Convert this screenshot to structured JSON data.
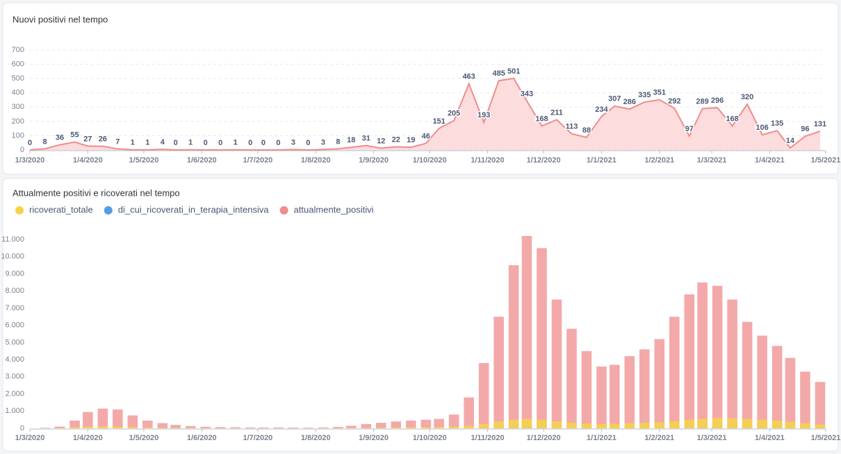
{
  "chart_data": [
    {
      "type": "area",
      "title": "Nuovi positivi nel tempo",
      "color": "#ef8c8c",
      "fill": "#fcdcdc",
      "grid": true,
      "x": [
        "1/3/2020",
        "9/3/2020",
        "17/3/2020",
        "25/3/2020",
        "1/4/2020",
        "9/4/2020",
        "17/4/2020",
        "25/4/2020",
        "3/5/2020",
        "11/5/2020",
        "18/5/2020",
        "26/5/2020",
        "3/6/2020",
        "11/6/2020",
        "19/6/2020",
        "27/6/2020",
        "4/7/2020",
        "12/7/2020",
        "20/7/2020",
        "28/7/2020",
        "5/8/2020",
        "13/8/2020",
        "20/8/2020",
        "28/8/2020",
        "5/9/2020",
        "13/9/2020",
        "21/9/2020",
        "29/9/2020",
        "6/10/2020",
        "14/10/2020",
        "22/10/2020",
        "30/10/2020",
        "7/11/2020",
        "15/11/2020",
        "22/11/2020",
        "30/11/2020",
        "8/12/2020",
        "16/12/2020",
        "24/12/2020",
        "1/1/2021",
        "8/1/2021",
        "16/1/2021",
        "24/1/2021",
        "1/2/2021",
        "9/2/2021",
        "17/2/2021",
        "24/2/2021",
        "4/3/2021",
        "12/3/2021",
        "20/3/2021",
        "28/3/2021",
        "5/4/2021",
        "12/4/2021",
        "20/4/2021",
        "28/4/2021"
      ],
      "values": [
        0,
        8,
        36,
        55,
        27,
        26,
        7,
        1,
        1,
        4,
        0,
        1,
        0,
        0,
        1,
        0,
        0,
        0,
        3,
        0,
        3,
        8,
        18,
        31,
        12,
        22,
        19,
        46,
        151,
        205,
        463,
        193,
        485,
        501,
        343,
        168,
        211,
        113,
        88,
        234,
        307,
        286,
        335,
        351,
        292,
        97,
        289,
        296,
        168,
        320,
        106,
        135,
        14,
        96,
        131
      ],
      "xlim": [
        "1/3/2020",
        "1/5/2021"
      ],
      "xticks": [
        "1/3/2020",
        "1/4/2020",
        "1/5/2020",
        "1/6/2020",
        "1/7/2020",
        "1/8/2020",
        "1/9/2020",
        "1/10/2020",
        "1/11/2020",
        "1/12/2020",
        "1/1/2021",
        "1/2/2021",
        "1/3/2021",
        "1/4/2021",
        "1/5/2021"
      ],
      "ylim": [
        0,
        780
      ],
      "yticks": [
        0,
        100,
        200,
        300,
        400,
        500,
        600,
        700
      ]
    },
    {
      "type": "bar",
      "title": "Attualmente positivi e ricoverati nel tempo",
      "grid": false,
      "legend": "top-left",
      "x": [
        "1/3/2020",
        "9/3/2020",
        "17/3/2020",
        "25/3/2020",
        "1/4/2020",
        "9/4/2020",
        "17/4/2020",
        "25/4/2020",
        "3/5/2020",
        "11/5/2020",
        "18/5/2020",
        "26/5/2020",
        "3/6/2020",
        "11/6/2020",
        "19/6/2020",
        "27/6/2020",
        "4/7/2020",
        "12/7/2020",
        "20/7/2020",
        "28/7/2020",
        "5/8/2020",
        "13/8/2020",
        "20/8/2020",
        "28/8/2020",
        "5/9/2020",
        "13/9/2020",
        "21/9/2020",
        "29/9/2020",
        "6/10/2020",
        "14/10/2020",
        "22/10/2020",
        "30/10/2020",
        "7/11/2020",
        "15/11/2020",
        "22/11/2020",
        "30/11/2020",
        "8/12/2020",
        "16/12/2020",
        "24/12/2020",
        "1/1/2021",
        "8/1/2021",
        "16/1/2021",
        "24/1/2021",
        "1/2/2021",
        "9/2/2021",
        "17/2/2021",
        "24/2/2021",
        "4/3/2021",
        "12/3/2021",
        "20/3/2021",
        "28/3/2021",
        "5/4/2021",
        "12/4/2021",
        "20/4/2021",
        "28/4/2021"
      ],
      "series": [
        {
          "name": "ricoverati_totale",
          "color": "#f5d24b",
          "values": [
            0,
            5,
            20,
            60,
            100,
            110,
            100,
            80,
            50,
            30,
            20,
            15,
            10,
            8,
            5,
            5,
            5,
            5,
            5,
            5,
            5,
            10,
            20,
            30,
            40,
            50,
            60,
            70,
            80,
            100,
            150,
            250,
            400,
            500,
            550,
            500,
            400,
            330,
            280,
            260,
            270,
            300,
            320,
            350,
            420,
            500,
            560,
            600,
            580,
            550,
            500,
            450,
            380,
            300,
            220
          ]
        },
        {
          "name": "di_cui_ricoverati_in_terapia_intensiva",
          "color": "#509ee3",
          "values": [
            0,
            1,
            5,
            10,
            15,
            15,
            12,
            10,
            6,
            4,
            3,
            2,
            1,
            1,
            1,
            1,
            1,
            1,
            1,
            1,
            1,
            1,
            2,
            3,
            4,
            5,
            6,
            7,
            8,
            10,
            20,
            35,
            55,
            65,
            65,
            55,
            45,
            35,
            30,
            28,
            28,
            30,
            32,
            35,
            40,
            48,
            55,
            60,
            60,
            58,
            55,
            50,
            42,
            35,
            28
          ]
        },
        {
          "name": "attualmente_positivi",
          "color": "#ef8c8c",
          "values": [
            0,
            30,
            100,
            450,
            950,
            1150,
            1100,
            750,
            450,
            300,
            200,
            130,
            90,
            70,
            60,
            50,
            50,
            50,
            45,
            40,
            50,
            80,
            150,
            250,
            320,
            400,
            450,
            500,
            550,
            800,
            1800,
            3800,
            6500,
            9500,
            11200,
            10500,
            7500,
            5800,
            4500,
            3600,
            3700,
            4200,
            4600,
            5200,
            6500,
            7800,
            8500,
            8300,
            7500,
            6200,
            5400,
            4800,
            4100,
            3300,
            2700
          ]
        }
      ],
      "xlim": [
        "1/3/2020",
        "1/5/2021"
      ],
      "xticks": [
        "1/3/2020",
        "1/4/2020",
        "1/5/2020",
        "1/6/2020",
        "1/7/2020",
        "1/8/2020",
        "1/9/2020",
        "1/10/2020",
        "1/11/2020",
        "1/12/2020",
        "1/1/2021",
        "1/2/2021",
        "1/3/2021",
        "1/4/2021",
        "1/5/2021"
      ],
      "ylim": [
        0,
        11500
      ],
      "yticks": [
        0,
        {
          "value": 1000,
          "label": "1.000"
        },
        {
          "value": 2000,
          "label": "2.000"
        },
        {
          "value": 3000,
          "label": "3.000"
        },
        {
          "value": 4000,
          "label": "4.000"
        },
        {
          "value": 5000,
          "label": "5.000"
        },
        {
          "value": 6000,
          "label": "6.000"
        },
        {
          "value": 7000,
          "label": "7.000"
        },
        {
          "value": 8000,
          "label": "8.000"
        },
        {
          "value": 9000,
          "label": "9.000"
        },
        {
          "value": 10000,
          "label": "10.000"
        },
        {
          "value": 11000,
          "label": "11.000"
        }
      ]
    }
  ]
}
